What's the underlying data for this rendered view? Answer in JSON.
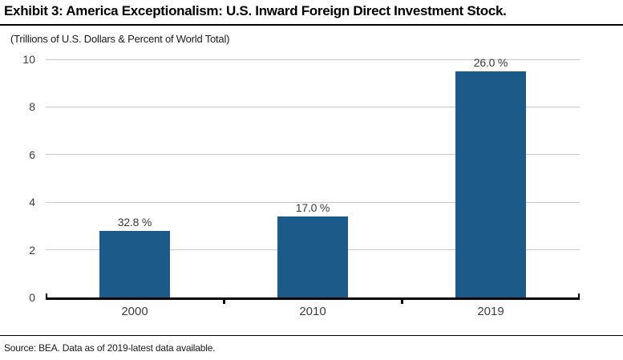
{
  "header": {
    "title": "Exhibit 3: America Exceptionalism: U.S. Inward Foreign Direct Investment Stock.",
    "subtitle": "(Trillions of U.S. Dollars & Percent of World Total)"
  },
  "chart_data": {
    "type": "bar",
    "title": "Exhibit 3: America Exceptionalism: U.S. Inward Foreign Direct Investment Stock.",
    "subtitle": "(Trillions of U.S. Dollars & Percent of World Total)",
    "categories": [
      "2000",
      "2010",
      "2019"
    ],
    "values": [
      2.8,
      3.4,
      9.5
    ],
    "bar_labels": [
      "32.8 %",
      "17.0 %",
      "26.0 %"
    ],
    "xlabel": "",
    "ylabel": "",
    "ylim": [
      0,
      10
    ],
    "yticks": [
      0,
      2,
      4,
      6,
      8,
      10
    ],
    "grid": true,
    "legend": false,
    "bar_color": "#1B5A89"
  },
  "footer": {
    "source": "Source: BEA. Data as of 2019-latest data available."
  },
  "colors": {
    "bar": "#1B5A89",
    "gridline": "#C9C9C9",
    "axis": "#000000",
    "tick_label": "#3D3D3D"
  }
}
